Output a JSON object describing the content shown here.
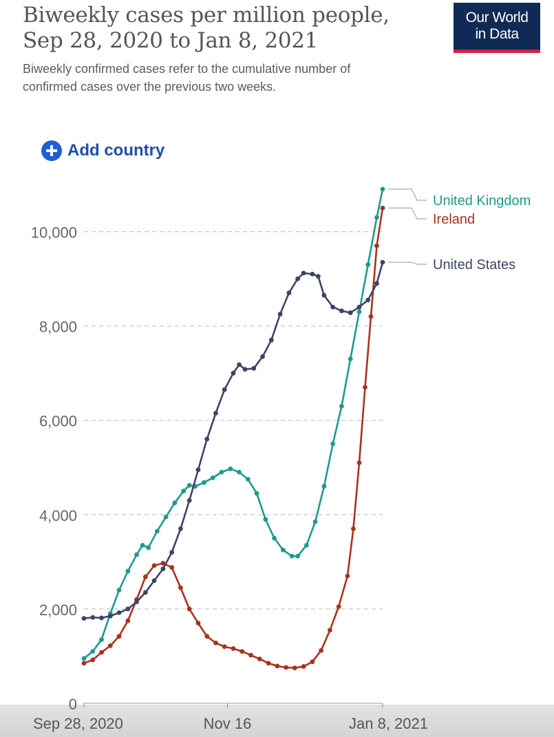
{
  "header": {
    "title_line1": "Biweekly cases per million people,",
    "title_line2": "Sep 28, 2020 to Jan 8, 2021",
    "subtitle": "Biweekly confirmed cases refer to the cumulative number of confirmed cases over the previous two weeks."
  },
  "logo": {
    "line1": "Our World",
    "line2": "in Data"
  },
  "controls": {
    "add_country_label": "Add country"
  },
  "chart_data": {
    "type": "line",
    "title": "Biweekly cases per million people, Sep 28, 2020 to Jan 8, 2021",
    "xlabel": "",
    "ylabel": "",
    "x_start": "Sep 28, 2020",
    "x_end": "Jan 8, 2021",
    "xlim": [
      "2020-09-28",
      "2021-01-08"
    ],
    "ylim": [
      0,
      11000
    ],
    "yticks": [
      0,
      2000,
      4000,
      6000,
      8000,
      10000
    ],
    "ytick_labels": [
      "0",
      "2,000",
      "4,000",
      "6,000",
      "8,000",
      "10,000"
    ],
    "xticks": [
      "2020-09-28",
      "2020-11-16",
      "2021-01-08"
    ],
    "xtick_labels": [
      "Sep 28, 2020",
      "Nov 16",
      "Jan 8, 2021"
    ],
    "grid": "horizontal dashed",
    "legend": "end-of-line labels, right",
    "series": [
      {
        "name": "United Kingdom",
        "color": "#1f9a8a",
        "points": [
          [
            "2020-09-28",
            950
          ],
          [
            "2020-10-01",
            1100
          ],
          [
            "2020-10-04",
            1350
          ],
          [
            "2020-10-07",
            1900
          ],
          [
            "2020-10-10",
            2400
          ],
          [
            "2020-10-13",
            2800
          ],
          [
            "2020-10-16",
            3150
          ],
          [
            "2020-10-18",
            3350
          ],
          [
            "2020-10-20",
            3300
          ],
          [
            "2020-10-23",
            3650
          ],
          [
            "2020-10-26",
            3950
          ],
          [
            "2020-10-29",
            4250
          ],
          [
            "2020-11-01",
            4500
          ],
          [
            "2020-11-03",
            4620
          ],
          [
            "2020-11-05",
            4600
          ],
          [
            "2020-11-08",
            4680
          ],
          [
            "2020-11-11",
            4780
          ],
          [
            "2020-11-14",
            4900
          ],
          [
            "2020-11-17",
            4970
          ],
          [
            "2020-11-20",
            4900
          ],
          [
            "2020-11-23",
            4750
          ],
          [
            "2020-11-26",
            4450
          ],
          [
            "2020-11-29",
            3900
          ],
          [
            "2020-12-02",
            3500
          ],
          [
            "2020-12-05",
            3250
          ],
          [
            "2020-12-08",
            3120
          ],
          [
            "2020-12-10",
            3120
          ],
          [
            "2020-12-13",
            3350
          ],
          [
            "2020-12-16",
            3850
          ],
          [
            "2020-12-19",
            4600
          ],
          [
            "2020-12-22",
            5500
          ],
          [
            "2020-12-25",
            6300
          ],
          [
            "2020-12-28",
            7300
          ],
          [
            "2020-12-31",
            8300
          ],
          [
            "2021-01-03",
            9300
          ],
          [
            "2021-01-06",
            10300
          ],
          [
            "2021-01-08",
            10900
          ]
        ]
      },
      {
        "name": "Ireland",
        "color": "#a8321e",
        "points": [
          [
            "2020-09-28",
            850
          ],
          [
            "2020-10-01",
            920
          ],
          [
            "2020-10-04",
            1080
          ],
          [
            "2020-10-07",
            1220
          ],
          [
            "2020-10-10",
            1420
          ],
          [
            "2020-10-13",
            1750
          ],
          [
            "2020-10-16",
            2200
          ],
          [
            "2020-10-19",
            2680
          ],
          [
            "2020-10-22",
            2920
          ],
          [
            "2020-10-25",
            2970
          ],
          [
            "2020-10-28",
            2880
          ],
          [
            "2020-10-31",
            2450
          ],
          [
            "2020-11-03",
            2000
          ],
          [
            "2020-11-06",
            1700
          ],
          [
            "2020-11-09",
            1420
          ],
          [
            "2020-11-12",
            1280
          ],
          [
            "2020-11-15",
            1200
          ],
          [
            "2020-11-18",
            1160
          ],
          [
            "2020-11-21",
            1100
          ],
          [
            "2020-11-24",
            1020
          ],
          [
            "2020-11-27",
            940
          ],
          [
            "2020-11-30",
            850
          ],
          [
            "2020-12-03",
            790
          ],
          [
            "2020-12-06",
            760
          ],
          [
            "2020-12-09",
            750
          ],
          [
            "2020-12-12",
            780
          ],
          [
            "2020-12-15",
            880
          ],
          [
            "2020-12-18",
            1120
          ],
          [
            "2020-12-21",
            1550
          ],
          [
            "2020-12-24",
            2050
          ],
          [
            "2020-12-27",
            2700
          ],
          [
            "2020-12-29",
            3700
          ],
          [
            "2020-12-31",
            5100
          ],
          [
            "2021-01-02",
            6700
          ],
          [
            "2021-01-04",
            8200
          ],
          [
            "2021-01-06",
            9700
          ],
          [
            "2021-01-08",
            10500
          ]
        ]
      },
      {
        "name": "United States",
        "color": "#3c4466",
        "points": [
          [
            "2020-09-28",
            1800
          ],
          [
            "2020-10-01",
            1820
          ],
          [
            "2020-10-04",
            1810
          ],
          [
            "2020-10-07",
            1850
          ],
          [
            "2020-10-10",
            1920
          ],
          [
            "2020-10-13",
            2000
          ],
          [
            "2020-10-16",
            2150
          ],
          [
            "2020-10-19",
            2350
          ],
          [
            "2020-10-22",
            2600
          ],
          [
            "2020-10-25",
            2850
          ],
          [
            "2020-10-28",
            3200
          ],
          [
            "2020-10-31",
            3700
          ],
          [
            "2020-11-03",
            4300
          ],
          [
            "2020-11-06",
            4950
          ],
          [
            "2020-11-09",
            5600
          ],
          [
            "2020-11-12",
            6150
          ],
          [
            "2020-11-15",
            6650
          ],
          [
            "2020-11-18",
            7000
          ],
          [
            "2020-11-20",
            7180
          ],
          [
            "2020-11-22",
            7080
          ],
          [
            "2020-11-25",
            7100
          ],
          [
            "2020-11-28",
            7350
          ],
          [
            "2020-12-01",
            7700
          ],
          [
            "2020-12-04",
            8250
          ],
          [
            "2020-12-07",
            8700
          ],
          [
            "2020-12-10",
            9000
          ],
          [
            "2020-12-12",
            9120
          ],
          [
            "2020-12-15",
            9100
          ],
          [
            "2020-12-17",
            9050
          ],
          [
            "2020-12-19",
            8650
          ],
          [
            "2020-12-22",
            8400
          ],
          [
            "2020-12-25",
            8320
          ],
          [
            "2020-12-28",
            8280
          ],
          [
            "2020-12-31",
            8400
          ],
          [
            "2021-01-03",
            8550
          ],
          [
            "2021-01-06",
            8900
          ],
          [
            "2021-01-08",
            9350
          ]
        ]
      }
    ]
  }
}
